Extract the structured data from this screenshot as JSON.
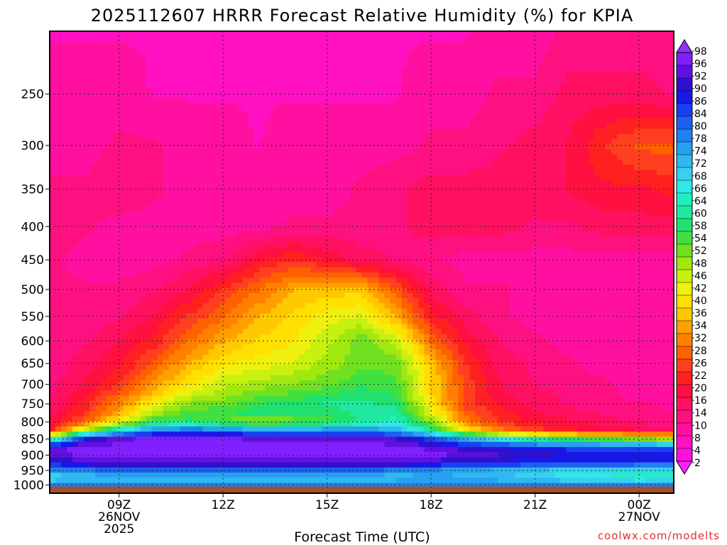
{
  "chart_data": {
    "type": "heatmap",
    "title": "2025112607 HRRR Forecast Relative Humidity (%) for KPIA",
    "xlabel": "Forecast Time (UTC)",
    "ylabel": "",
    "y_scale": "log",
    "y_axis_inverted": true,
    "y_range_hPa": [
      200,
      1030
    ],
    "y_ticks": [
      "250",
      "300",
      "350",
      "400",
      "450",
      "500",
      "550",
      "600",
      "650",
      "700",
      "750",
      "800",
      "850",
      "900",
      "950",
      "1000"
    ],
    "x_range_hours": [
      7,
      25
    ],
    "x_ticks": [
      {
        "hour": 9,
        "lines": [
          "09Z",
          "26NOV",
          "2025"
        ]
      },
      {
        "hour": 12,
        "lines": [
          "12Z"
        ]
      },
      {
        "hour": 15,
        "lines": [
          "15Z"
        ]
      },
      {
        "hour": 18,
        "lines": [
          "18Z"
        ]
      },
      {
        "hour": 21,
        "lines": [
          "21Z"
        ]
      },
      {
        "hour": 24,
        "lines": [
          "00Z",
          "27NOV"
        ]
      }
    ],
    "grid": "dotted",
    "colorbar": {
      "placement": "right",
      "labels": [
        "98",
        "96",
        "92",
        "90",
        "86",
        "84",
        "80",
        "78",
        "74",
        "72",
        "68",
        "66",
        "64",
        "60",
        "58",
        "54",
        "52",
        "48",
        "46",
        "42",
        "40",
        "36",
        "34",
        "32",
        "28",
        "26",
        "22",
        "20",
        "16",
        "14",
        "10",
        "8",
        "4",
        "2"
      ],
      "colors": [
        "#8020ff",
        "#6010e0",
        "#3010d0",
        "#1818e8",
        "#1840f0",
        "#1c60f0",
        "#2080f0",
        "#28a0f0",
        "#30b8f0",
        "#38d0f0",
        "#30e8e8",
        "#20f0c0",
        "#20e8a0",
        "#20e070",
        "#40e040",
        "#70e020",
        "#a0e810",
        "#c8f010",
        "#f0f010",
        "#ffe000",
        "#ffc800",
        "#ffa000",
        "#ff8000",
        "#ff6000",
        "#ff4020",
        "#ff2020",
        "#ff1040",
        "#ff1060",
        "#ff1080",
        "#ff10a0",
        "#ff10c0",
        "#ff10e0"
      ],
      "range": [
        0,
        100
      ]
    },
    "ground_color": "#a0522d",
    "times": [
      7,
      8,
      9,
      10,
      11,
      12,
      13,
      14,
      15,
      16,
      17,
      18,
      19,
      20,
      21,
      22,
      23,
      24,
      25
    ],
    "levels_hPa": [
      1000,
      975,
      950,
      925,
      900,
      875,
      850,
      825,
      800,
      775,
      750,
      725,
      700,
      650,
      600,
      550,
      500,
      450,
      400,
      350,
      300,
      250,
      200
    ],
    "values": [
      [
        80,
        80,
        80,
        80,
        80,
        80,
        80,
        80,
        80,
        80,
        80,
        80,
        80,
        80,
        80,
        80,
        80,
        80,
        80
      ],
      [
        66,
        72,
        72,
        72,
        72,
        72,
        72,
        72,
        72,
        72,
        72,
        74,
        74,
        72,
        70,
        66,
        64,
        62,
        64
      ],
      [
        80,
        80,
        82,
        82,
        82,
        82,
        82,
        82,
        82,
        82,
        80,
        78,
        76,
        74,
        72,
        70,
        70,
        68,
        68
      ],
      [
        88,
        94,
        96,
        96,
        96,
        96,
        96,
        96,
        96,
        96,
        96,
        92,
        90,
        90,
        88,
        88,
        88,
        86,
        86
      ],
      [
        94,
        98,
        98,
        98,
        98,
        98,
        98,
        98,
        98,
        98,
        98,
        98,
        96,
        94,
        92,
        90,
        90,
        90,
        90
      ],
      [
        96,
        98,
        98,
        98,
        98,
        98,
        98,
        98,
        98,
        98,
        98,
        96,
        92,
        90,
        88,
        86,
        86,
        84,
        84
      ],
      [
        60,
        90,
        96,
        98,
        98,
        98,
        96,
        96,
        96,
        96,
        94,
        86,
        76,
        68,
        60,
        56,
        54,
        50,
        48
      ],
      [
        20,
        50,
        70,
        80,
        84,
        82,
        80,
        80,
        80,
        80,
        76,
        62,
        40,
        30,
        24,
        20,
        18,
        16,
        14
      ],
      [
        16,
        26,
        42,
        56,
        58,
        52,
        48,
        50,
        54,
        60,
        64,
        50,
        30,
        22,
        18,
        16,
        14,
        12,
        10
      ],
      [
        14,
        22,
        34,
        48,
        54,
        56,
        58,
        58,
        58,
        60,
        62,
        44,
        26,
        20,
        16,
        14,
        12,
        10,
        10
      ],
      [
        12,
        20,
        30,
        42,
        50,
        52,
        56,
        58,
        60,
        60,
        58,
        40,
        24,
        18,
        14,
        12,
        10,
        10,
        8
      ],
      [
        12,
        18,
        26,
        36,
        44,
        48,
        52,
        54,
        56,
        58,
        56,
        38,
        24,
        16,
        14,
        12,
        10,
        8,
        8
      ],
      [
        12,
        16,
        22,
        32,
        40,
        46,
        48,
        50,
        52,
        56,
        54,
        38,
        24,
        16,
        12,
        10,
        10,
        8,
        8
      ],
      [
        10,
        14,
        18,
        26,
        34,
        40,
        42,
        44,
        48,
        52,
        52,
        36,
        22,
        14,
        12,
        10,
        8,
        8,
        8
      ],
      [
        10,
        12,
        16,
        20,
        28,
        34,
        38,
        40,
        46,
        52,
        46,
        28,
        18,
        12,
        10,
        8,
        8,
        8,
        8
      ],
      [
        10,
        10,
        12,
        16,
        22,
        28,
        34,
        38,
        42,
        44,
        34,
        20,
        14,
        10,
        8,
        8,
        8,
        8,
        8
      ],
      [
        10,
        10,
        10,
        12,
        16,
        22,
        28,
        34,
        36,
        36,
        26,
        14,
        10,
        10,
        8,
        8,
        8,
        8,
        8
      ],
      [
        10,
        8,
        8,
        8,
        10,
        12,
        18,
        22,
        18,
        14,
        12,
        10,
        8,
        8,
        8,
        8,
        8,
        8,
        8
      ],
      [
        12,
        10,
        8,
        8,
        8,
        8,
        8,
        10,
        10,
        10,
        12,
        14,
        14,
        14,
        12,
        12,
        14,
        14,
        14
      ],
      [
        10,
        10,
        12,
        10,
        8,
        8,
        8,
        8,
        8,
        10,
        12,
        14,
        14,
        14,
        14,
        16,
        18,
        18,
        20
      ],
      [
        8,
        8,
        10,
        10,
        8,
        8,
        6,
        8,
        8,
        8,
        8,
        10,
        10,
        12,
        14,
        16,
        22,
        26,
        26
      ],
      [
        8,
        8,
        8,
        6,
        6,
        6,
        6,
        6,
        6,
        6,
        6,
        8,
        8,
        10,
        10,
        14,
        14,
        14,
        12
      ],
      [
        6,
        6,
        6,
        6,
        4,
        4,
        4,
        4,
        4,
        4,
        6,
        6,
        6,
        8,
        8,
        10,
        10,
        10,
        10
      ]
    ]
  },
  "footer": {
    "credit": "coolwx.com/modelts"
  },
  "colors": {
    "credit": "#e03030",
    "grid": "#222222",
    "frame": "#000000"
  }
}
